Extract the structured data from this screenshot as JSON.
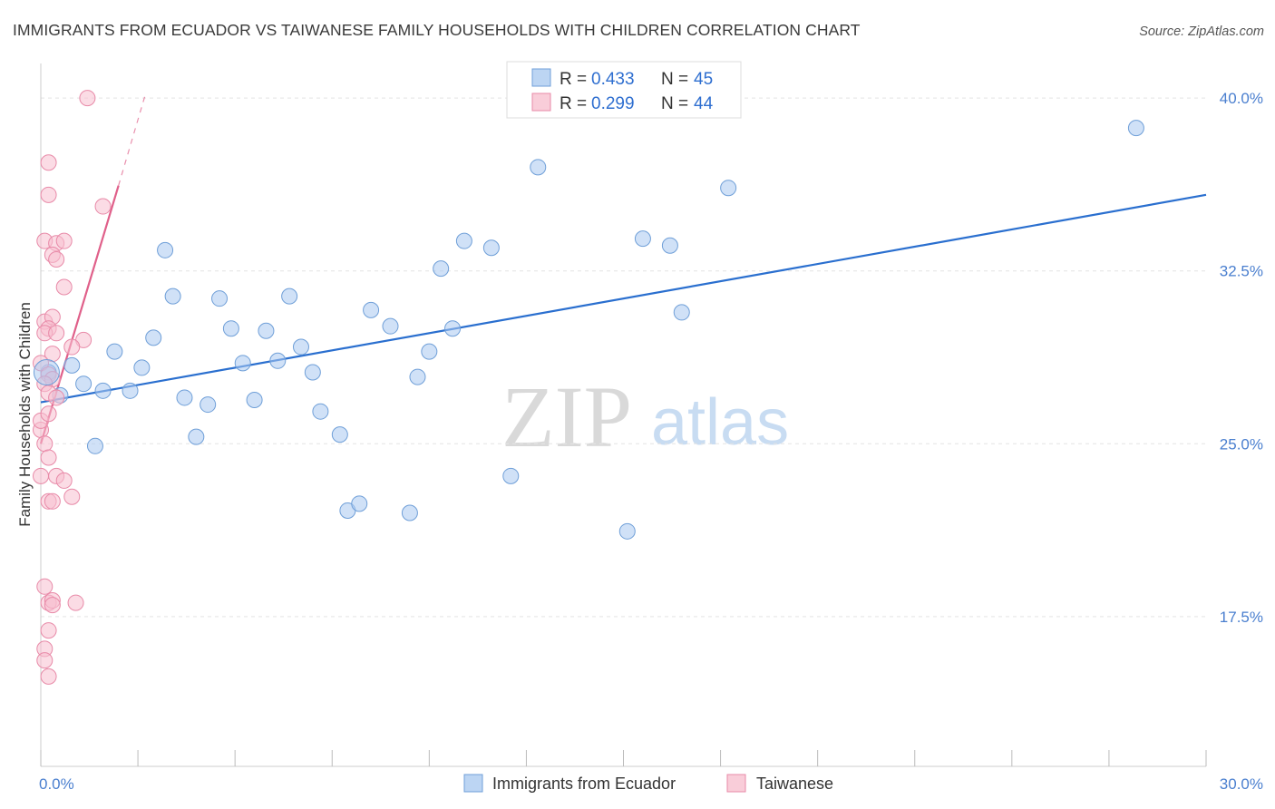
{
  "chart_data": {
    "type": "scatter",
    "title": "IMMIGRANTS FROM ECUADOR VS TAIWANESE FAMILY HOUSEHOLDS WITH CHILDREN CORRELATION CHART",
    "source": "Source: ZipAtlas.com",
    "xlabel": "",
    "ylabel": "Family Households with Children",
    "xlim": [
      0,
      30
    ],
    "ylim": [
      11.0,
      41.5
    ],
    "x_tick_labels": [
      {
        "value": 0,
        "label": "0.0%"
      },
      {
        "value": 30,
        "label": "30.0%"
      }
    ],
    "y_ticks": [
      {
        "value": 17.5,
        "label": "17.5%"
      },
      {
        "value": 25.0,
        "label": "25.0%"
      },
      {
        "value": 32.5,
        "label": "32.5%"
      },
      {
        "value": 40.0,
        "label": "40.0%"
      }
    ],
    "grid": true,
    "legend": {
      "placement": "top-center",
      "rows": [
        {
          "r_label": "R = ",
          "r_value": "0.433",
          "n_label": "N = ",
          "n_value": "45"
        },
        {
          "r_label": "R = ",
          "r_value": "0.299",
          "n_label": "N = ",
          "n_value": "44"
        }
      ]
    },
    "series": [
      {
        "name": "Immigrants from Ecuador",
        "color": "#a9c8f0",
        "stroke": "#6f9fd8",
        "line_color": "#2a6fcf",
        "trend": {
          "x0": 0.0,
          "y0": 26.8,
          "x1": 30.0,
          "y1": 35.8
        },
        "points": [
          [
            0.2,
            28.1
          ],
          [
            0.5,
            27.1
          ],
          [
            0.8,
            28.4
          ],
          [
            1.1,
            27.6
          ],
          [
            1.4,
            24.9
          ],
          [
            1.6,
            27.3
          ],
          [
            1.9,
            29.0
          ],
          [
            2.3,
            27.3
          ],
          [
            2.6,
            28.3
          ],
          [
            2.9,
            29.6
          ],
          [
            3.2,
            33.4
          ],
          [
            3.4,
            31.4
          ],
          [
            3.7,
            27.0
          ],
          [
            4.0,
            25.3
          ],
          [
            4.3,
            26.7
          ],
          [
            4.6,
            31.3
          ],
          [
            4.9,
            30.0
          ],
          [
            5.2,
            28.5
          ],
          [
            5.5,
            26.9
          ],
          [
            5.8,
            29.9
          ],
          [
            6.1,
            28.6
          ],
          [
            6.4,
            31.4
          ],
          [
            6.7,
            29.2
          ],
          [
            7.0,
            28.1
          ],
          [
            7.2,
            26.4
          ],
          [
            7.7,
            25.4
          ],
          [
            7.9,
            22.1
          ],
          [
            8.2,
            22.4
          ],
          [
            8.5,
            30.8
          ],
          [
            9.0,
            30.1
          ],
          [
            9.5,
            22.0
          ],
          [
            9.7,
            27.9
          ],
          [
            10.0,
            29.0
          ],
          [
            10.3,
            32.6
          ],
          [
            10.6,
            30.0
          ],
          [
            10.9,
            33.8
          ],
          [
            11.6,
            33.5
          ],
          [
            12.1,
            23.6
          ],
          [
            12.8,
            37.0
          ],
          [
            15.1,
            21.2
          ],
          [
            15.5,
            33.9
          ],
          [
            16.2,
            33.6
          ],
          [
            16.5,
            30.7
          ],
          [
            17.7,
            36.1
          ],
          [
            28.2,
            38.7
          ]
        ]
      },
      {
        "name": "Taiwanese",
        "color": "#f7bfd0",
        "stroke": "#e88aa8",
        "line_color": "#e0608a",
        "trend": {
          "x0": 0.0,
          "y0": 25.0,
          "x1": 2.0,
          "y1": 36.2
        },
        "trend_dashed": {
          "x0": 2.0,
          "y0": 36.2,
          "x1": 2.7,
          "y1": 40.2
        },
        "points": [
          [
            1.2,
            40.0
          ],
          [
            0.2,
            37.2
          ],
          [
            0.2,
            35.8
          ],
          [
            1.6,
            35.3
          ],
          [
            0.1,
            33.8
          ],
          [
            0.4,
            33.7
          ],
          [
            0.6,
            33.8
          ],
          [
            0.3,
            33.2
          ],
          [
            0.4,
            33.0
          ],
          [
            0.6,
            31.8
          ],
          [
            0.1,
            30.3
          ],
          [
            0.3,
            30.5
          ],
          [
            0.2,
            30.0
          ],
          [
            0.1,
            29.8
          ],
          [
            0.4,
            29.8
          ],
          [
            1.1,
            29.5
          ],
          [
            0.3,
            28.9
          ],
          [
            0.8,
            29.2
          ],
          [
            0.0,
            28.5
          ],
          [
            0.2,
            28.0
          ],
          [
            0.3,
            27.8
          ],
          [
            0.1,
            27.6
          ],
          [
            0.2,
            27.2
          ],
          [
            0.4,
            27.0
          ],
          [
            0.0,
            25.6
          ],
          [
            0.1,
            25.0
          ],
          [
            0.2,
            24.4
          ],
          [
            0.4,
            23.6
          ],
          [
            0.6,
            23.4
          ],
          [
            0.0,
            23.6
          ],
          [
            0.8,
            22.7
          ],
          [
            0.2,
            22.5
          ],
          [
            0.3,
            22.5
          ],
          [
            0.1,
            18.8
          ],
          [
            0.2,
            18.1
          ],
          [
            0.3,
            18.2
          ],
          [
            0.3,
            18.0
          ],
          [
            0.9,
            18.1
          ],
          [
            0.2,
            16.9
          ],
          [
            0.1,
            16.1
          ],
          [
            0.1,
            15.6
          ],
          [
            0.2,
            14.9
          ],
          [
            0.0,
            26.0
          ],
          [
            0.2,
            26.3
          ]
        ]
      }
    ],
    "watermark": {
      "zip": "ZIP",
      "atlas": "atlas"
    }
  }
}
